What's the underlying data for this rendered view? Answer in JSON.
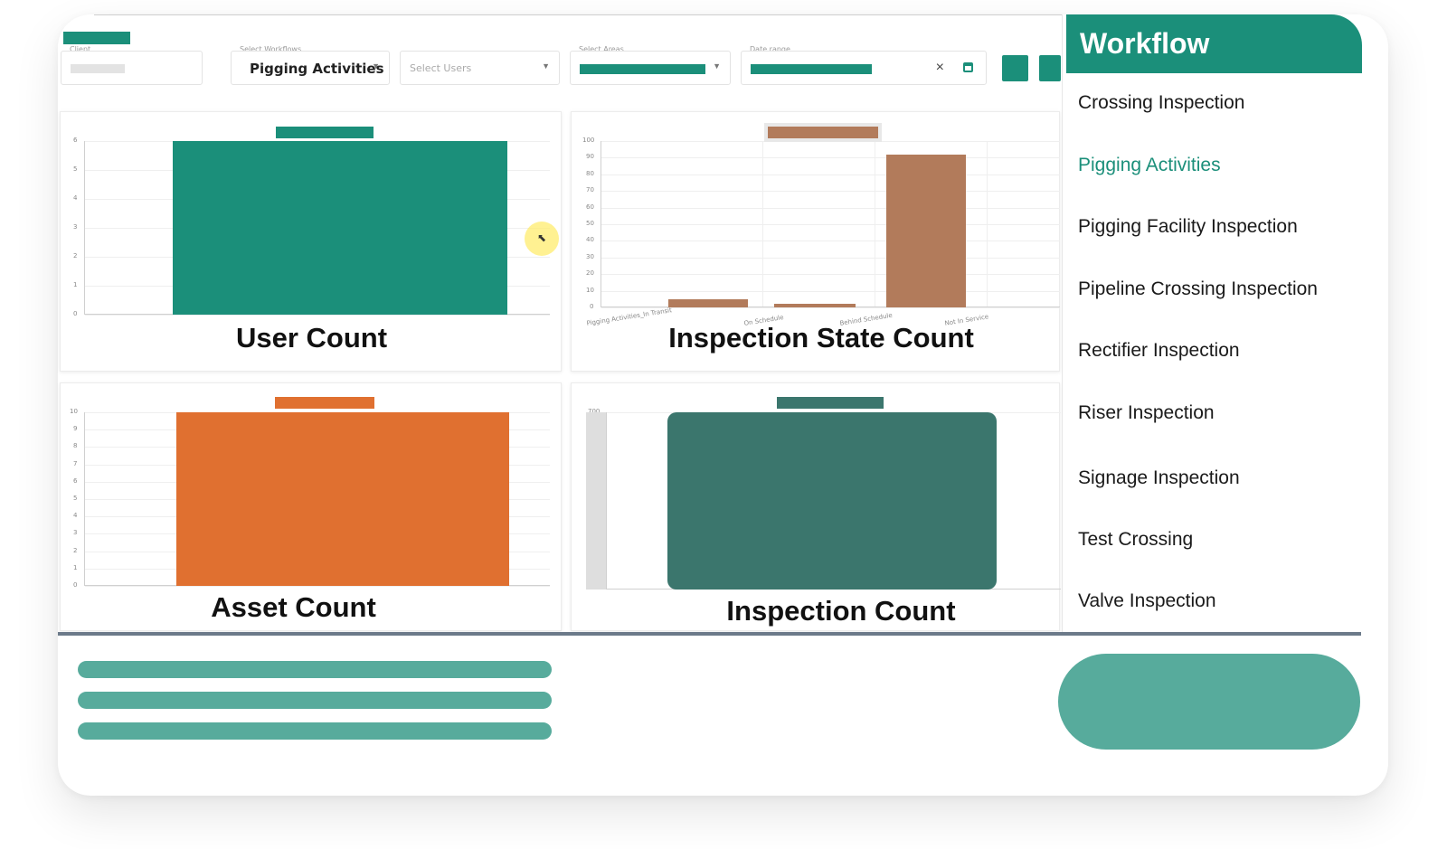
{
  "filters": {
    "client": {
      "label": "Client"
    },
    "workflow": {
      "label": "Select Workflows",
      "value": "Pigging Activities"
    },
    "users": {
      "label": "",
      "placeholder": "Select Users"
    },
    "areas": {
      "label": "Select Areas"
    },
    "date": {
      "label": "Date range",
      "clear": "×"
    }
  },
  "chart_data": [
    {
      "type": "bar",
      "title": "User Count",
      "categories": [
        ""
      ],
      "values": [
        6
      ],
      "ylim": [
        0,
        6
      ],
      "yticks": [
        "0",
        "1",
        "2",
        "3",
        "4",
        "5",
        "6"
      ],
      "color": "#1b8f7a"
    },
    {
      "type": "bar",
      "title": "Inspection State Count",
      "categories": [
        "Pigging Activities_In Transit",
        "On Schedule",
        "Behind Schedule",
        "Not In Service"
      ],
      "values": [
        5,
        2,
        92,
        0
      ],
      "ylim": [
        0,
        100
      ],
      "yticks": [
        "0",
        "10",
        "20",
        "30",
        "40",
        "50",
        "60",
        "70",
        "80",
        "90",
        "100"
      ],
      "color": "#b27b5b"
    },
    {
      "type": "bar",
      "title": "Asset Count",
      "categories": [
        ""
      ],
      "values": [
        10
      ],
      "ylim": [
        0,
        10
      ],
      "yticks": [
        "0",
        "1",
        "2",
        "3",
        "4",
        "5",
        "6",
        "7",
        "8",
        "9",
        "10"
      ],
      "color": "#e07030"
    },
    {
      "type": "bar",
      "title": "Inspection Count",
      "categories": [
        ""
      ],
      "values": [
        700
      ],
      "ylim": [
        0,
        700
      ],
      "yticks": [
        "700"
      ],
      "color": "#3b766d"
    }
  ],
  "workflow": {
    "title": "Workflow",
    "items": [
      {
        "label": "Crossing Inspection",
        "active": false
      },
      {
        "label": "Pigging Activities",
        "active": true
      },
      {
        "label": "Pigging Facility Inspection",
        "active": false
      },
      {
        "label": "Pipeline Crossing Inspection",
        "active": false
      },
      {
        "label": "Rectifier Inspection",
        "active": false
      },
      {
        "label": "Riser Inspection",
        "active": false
      },
      {
        "label": "Signage Inspection",
        "active": false
      },
      {
        "label": "Test Crossing",
        "active": false
      },
      {
        "label": "Valve Inspection",
        "active": false
      }
    ]
  },
  "colors": {
    "accent": "#1b8f7a",
    "footer": "#57ab9c",
    "divider": "#6c7a8a"
  }
}
